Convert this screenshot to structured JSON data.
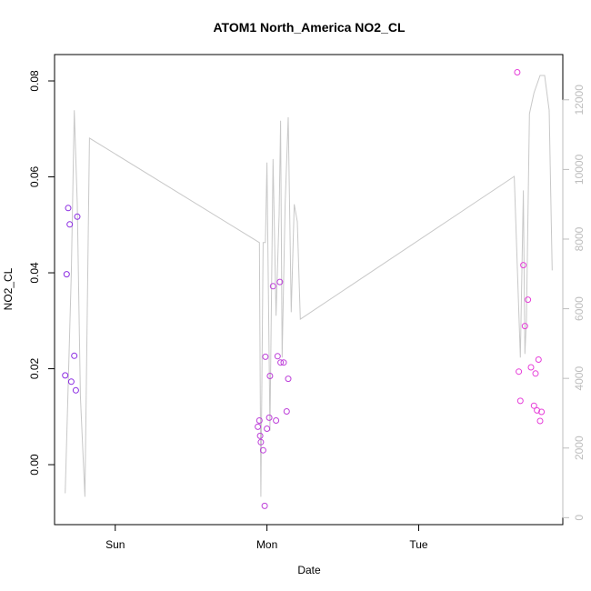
{
  "chart_data": {
    "type": "scatter",
    "title": "ATOM1 North_America NO2_CL",
    "xlabel": "Date",
    "ylabel": "NO2_CL",
    "x_unit": "day (0 = Sun 00:00)",
    "xlim": [
      -0.4,
      2.95
    ],
    "ylim": [
      -0.0125,
      0.0855
    ],
    "y2lim": [
      -200,
      13300
    ],
    "x_ticks": [
      {
        "value": 0,
        "label": "Sun"
      },
      {
        "value": 1,
        "label": "Mon"
      },
      {
        "value": 2,
        "label": "Tue"
      }
    ],
    "y_ticks": [
      {
        "value": 0.0,
        "label": "0.00"
      },
      {
        "value": 0.02,
        "label": "0.02"
      },
      {
        "value": 0.04,
        "label": "0.04"
      },
      {
        "value": 0.06,
        "label": "0.06"
      },
      {
        "value": 0.08,
        "label": "0.08"
      }
    ],
    "y2_ticks": [
      {
        "value": 0,
        "label": "0"
      },
      {
        "value": 2000,
        "label": "2000"
      },
      {
        "value": 4000,
        "label": "4000"
      },
      {
        "value": 6000,
        "label": "6000"
      },
      {
        "value": 8000,
        "label": "8000"
      },
      {
        "value": 10000,
        "label": "10000"
      },
      {
        "value": 12000,
        "label": "12000"
      }
    ],
    "secondary_line": {
      "color": "#c8c8c8",
      "x": [
        -0.33,
        -0.29,
        -0.27,
        -0.25,
        -0.23,
        -0.2,
        -0.17,
        0.95,
        0.96,
        0.975,
        0.99,
        1.0,
        1.02,
        1.04,
        1.06,
        1.08,
        1.09,
        1.1,
        1.12,
        1.14,
        1.16,
        1.18,
        1.2,
        1.22,
        2.63,
        2.67,
        2.69,
        2.7,
        2.71,
        2.73,
        2.76,
        2.8,
        2.83,
        2.86,
        2.88
      ],
      "y": [
        700,
        7000,
        11700,
        9000,
        3500,
        600,
        10900,
        7900,
        600,
        7900,
        7900,
        10200,
        2500,
        10300,
        5800,
        8700,
        11400,
        4600,
        9000,
        11500,
        5900,
        9000,
        8500,
        5700,
        9800,
        4600,
        9400,
        4700,
        5700,
        11600,
        12200,
        12700,
        12700,
        11700,
        7100
      ]
    },
    "series": [
      {
        "color": "#8b2be2",
        "x": [
          -0.33,
          -0.32,
          -0.31,
          -0.3,
          -0.29,
          -0.27,
          -0.26,
          -0.25
        ],
        "y": [
          0.0186,
          0.0397,
          0.0535,
          0.0501,
          0.0173,
          0.0227,
          0.0155,
          0.0517
        ]
      },
      {
        "color": "#bd3fd9",
        "x": [
          0.94,
          0.95,
          0.955,
          0.96,
          0.975,
          0.985,
          0.99,
          1.0,
          1.015,
          1.02,
          1.04,
          1.06,
          1.07,
          1.085,
          1.09,
          1.11,
          1.13,
          1.14
        ],
        "y": [
          0.0079,
          0.0092,
          0.006,
          0.0047,
          0.003,
          -0.0086,
          0.0225,
          0.0075,
          0.0098,
          0.0185,
          0.0372,
          0.0092,
          0.0226,
          0.0381,
          0.0213,
          0.0213,
          0.0111,
          0.0179
        ]
      },
      {
        "color": "#e63fd9",
        "x": [
          2.65,
          2.66,
          2.67,
          2.69,
          2.7,
          2.72,
          2.74,
          2.76,
          2.77,
          2.78,
          2.79,
          2.8,
          2.81
        ],
        "y": [
          0.0818,
          0.0194,
          0.0133,
          0.0416,
          0.0289,
          0.0344,
          0.0203,
          0.0123,
          0.019,
          0.0113,
          0.0219,
          0.0091,
          0.011
        ]
      }
    ]
  }
}
